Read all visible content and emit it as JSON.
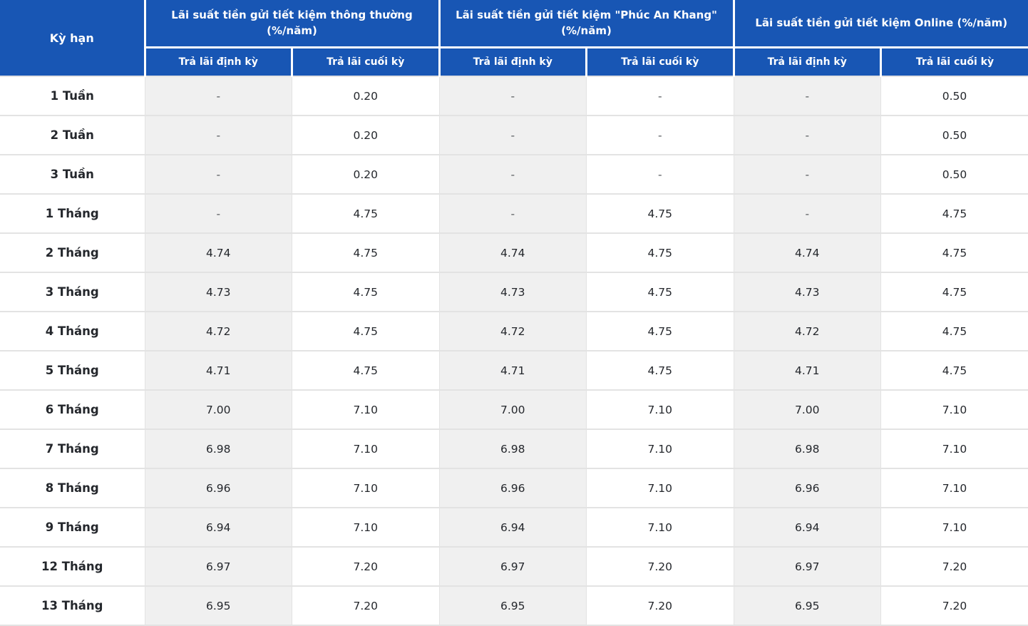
{
  "colors": {
    "header_bg": "#1856b4",
    "header_text": "#ffffff",
    "stripe_bg": "#f0f0f0",
    "border": "#e3e3e3",
    "term_text": "#24272c",
    "value_text": "#24272c",
    "dash_text": "#55585c"
  },
  "chart_data": {
    "type": "table",
    "corner_header": "Kỳ hạn",
    "column_groups": [
      {
        "label": "Lãi suất tiền gửi tiết kiệm thông thường\n(%/năm)",
        "sub_columns": [
          "Trả lãi định kỳ",
          "Trả lãi cuối kỳ"
        ]
      },
      {
        "label": "Lãi suất tiền gửi tiết kiệm \"Phúc An Khang\"\n(%/năm)",
        "sub_columns": [
          "Trả lãi định kỳ",
          "Trả lãi cuối kỳ"
        ]
      },
      {
        "label": "Lãi suất tiền gửi tiết kiệm Online (%/năm)",
        "sub_columns": [
          "Trả lãi định kỳ",
          "Trả lãi cuối kỳ"
        ]
      }
    ],
    "rows": [
      {
        "term": "1 Tuần",
        "values": [
          "-",
          "0.20",
          "-",
          "-",
          "-",
          "0.50"
        ]
      },
      {
        "term": "2 Tuần",
        "values": [
          "-",
          "0.20",
          "-",
          "-",
          "-",
          "0.50"
        ]
      },
      {
        "term": "3 Tuần",
        "values": [
          "-",
          "0.20",
          "-",
          "-",
          "-",
          "0.50"
        ]
      },
      {
        "term": "1 Tháng",
        "values": [
          "-",
          "4.75",
          "-",
          "4.75",
          "-",
          "4.75"
        ]
      },
      {
        "term": "2 Tháng",
        "values": [
          "4.74",
          "4.75",
          "4.74",
          "4.75",
          "4.74",
          "4.75"
        ]
      },
      {
        "term": "3 Tháng",
        "values": [
          "4.73",
          "4.75",
          "4.73",
          "4.75",
          "4.73",
          "4.75"
        ]
      },
      {
        "term": "4 Tháng",
        "values": [
          "4.72",
          "4.75",
          "4.72",
          "4.75",
          "4.72",
          "4.75"
        ]
      },
      {
        "term": "5 Tháng",
        "values": [
          "4.71",
          "4.75",
          "4.71",
          "4.75",
          "4.71",
          "4.75"
        ]
      },
      {
        "term": "6 Tháng",
        "values": [
          "7.00",
          "7.10",
          "7.00",
          "7.10",
          "7.00",
          "7.10"
        ]
      },
      {
        "term": "7 Tháng",
        "values": [
          "6.98",
          "7.10",
          "6.98",
          "7.10",
          "6.98",
          "7.10"
        ]
      },
      {
        "term": "8 Tháng",
        "values": [
          "6.96",
          "7.10",
          "6.96",
          "7.10",
          "6.96",
          "7.10"
        ]
      },
      {
        "term": "9 Tháng",
        "values": [
          "6.94",
          "7.10",
          "6.94",
          "7.10",
          "6.94",
          "7.10"
        ]
      },
      {
        "term": "12 Tháng",
        "values": [
          "6.97",
          "7.20",
          "6.97",
          "7.20",
          "6.97",
          "7.20"
        ]
      },
      {
        "term": "13 Tháng",
        "values": [
          "6.95",
          "7.20",
          "6.95",
          "7.20",
          "6.95",
          "7.20"
        ]
      }
    ]
  }
}
